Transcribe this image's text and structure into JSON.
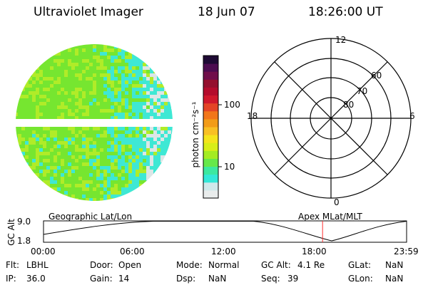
{
  "header": {
    "instrument": "Ultraviolet Imager",
    "date": "18 Jun 07",
    "time": "18:26:00 UT"
  },
  "colorbar": {
    "unit_label": "photon cm⁻²s⁻¹",
    "ticks": [
      "100",
      "10"
    ],
    "colors": [
      "#e9ecec",
      "#cfe8ea",
      "#33e8d8",
      "#3ce8a0",
      "#66e84a",
      "#a4ec22",
      "#d8ee18",
      "#f4e41c",
      "#f8c024",
      "#f29c18",
      "#f2761a",
      "#e44426",
      "#d0182c",
      "#b40c2c",
      "#94102e",
      "#700e4a",
      "#4c0c50",
      "#1e0a34"
    ]
  },
  "polar_plot": {
    "latitude_labels": [
      "80",
      "70",
      "60"
    ],
    "mlt_labels": {
      "top": "12",
      "left": "18",
      "right": "6",
      "bottom": "0"
    }
  },
  "timeline": {
    "left_title": "Geographic Lat/Lon",
    "right_title": "Apex MLat/MLT",
    "y_label": "GC Alt",
    "y_ticks": [
      "9.0",
      "1.8"
    ],
    "x_ticks": [
      "00:00",
      "06:00",
      "12:00",
      "18:00",
      "23:59"
    ],
    "marker_time": "18:26",
    "marker_color": "#ff3030"
  },
  "status": {
    "filter_label": "Flt:",
    "filter_value": "LBHL",
    "ip_label": "IP:",
    "ip_value": "36.0",
    "door_label": "Door:",
    "door_value": "Open",
    "gain_label": "Gain:",
    "gain_value": "14",
    "mode_label": "Mode:",
    "mode_value": "Normal",
    "dsp_label": "Dsp:",
    "dsp_value": "NaN",
    "gcalt_label": "GC Alt:",
    "gcalt_value": "4.1 Re",
    "seq_label": "Seq:",
    "seq_value": "39",
    "glat_label": "GLat:",
    "glat_value": "NaN",
    "glon_label": "GLon:",
    "glon_value": "NaN"
  },
  "image_colors": {
    "green": "#76e630",
    "yellow_green": "#b0ec28",
    "cyan": "#3ee8d4",
    "pale": "#dce6e6"
  }
}
